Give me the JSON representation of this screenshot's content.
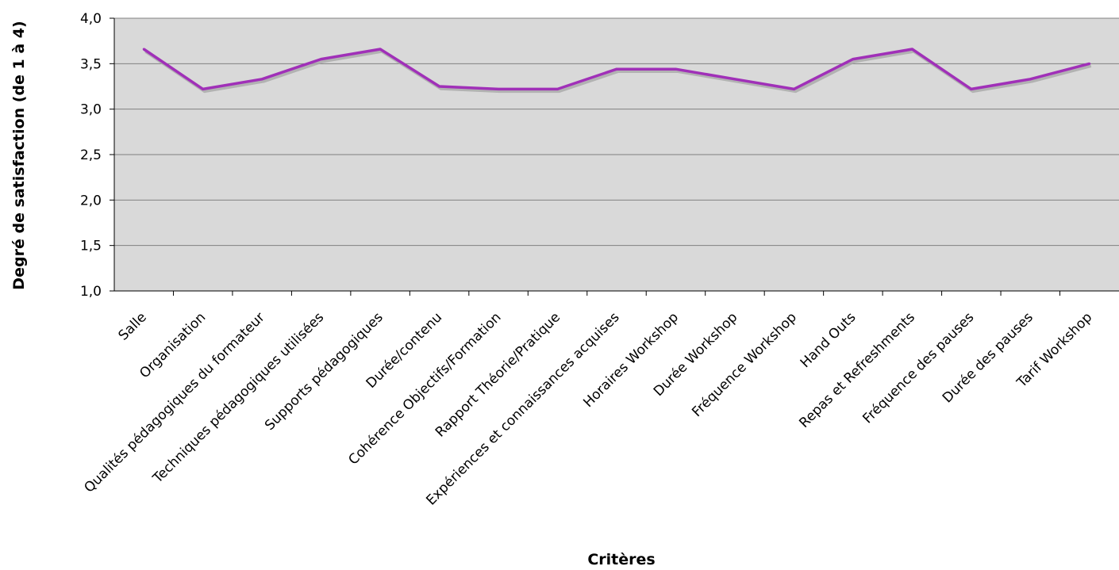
{
  "chart_data": {
    "type": "line",
    "title": "",
    "xlabel": "Critères",
    "ylabel": "Degré de satisfaction (de 1 à 4)",
    "ylim": [
      1.0,
      4.0
    ],
    "yticks": [
      "1,0",
      "1,5",
      "2,0",
      "2,5",
      "3,0",
      "3,5",
      "4,0"
    ],
    "grid": "horizontal",
    "legend": "none",
    "categories": [
      "Salle",
      "Organisation",
      "Qualités pédagogiques du formateur",
      "Techniques pédagogiques utilisées",
      "Supports pédagogiques",
      "Durée/contenu",
      "Cohérence Objectifs/Formation",
      "Rapport Théorie/Pratique",
      "Expériences et connaissances acquises",
      "Horaires Workshop",
      "Durée Workshop",
      "Fréquence Workshop",
      "Hand Outs",
      "Repas et Refreshments",
      "Fréquence des pauses",
      "Durée des pauses",
      "Tarif Workshop"
    ],
    "series": [
      {
        "values": [
          3.66,
          3.22,
          3.33,
          3.55,
          3.66,
          3.25,
          3.22,
          3.22,
          3.44,
          3.44,
          3.33,
          3.22,
          3.55,
          3.66,
          3.22,
          3.33,
          3.5
        ]
      }
    ],
    "colors": {
      "line": "#a030b8",
      "shadow": "#a8a8a8",
      "plot_background": "#d9d9d9",
      "gridline": "#808080"
    }
  }
}
